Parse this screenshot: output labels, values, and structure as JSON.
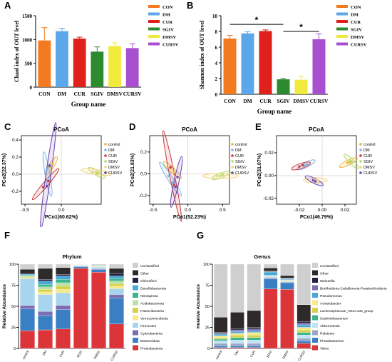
{
  "colors": {
    "CON": "#f47a20",
    "DM": "#5ba7ea",
    "CUR": "#e0201b",
    "SGIV": "#2e8a2e",
    "DMSV": "#f0ea3c",
    "CURSV": "#a84fcf",
    "pc_control": "#f2b43c",
    "pc_DM": "#7fb6e8",
    "pc_CUR": "#c8383c",
    "pc_SGIV": "#b2d96b",
    "pc_DMSV": "#f2d47c",
    "pc_CURSV": "#6b3fb0"
  },
  "panel_labels": [
    "A",
    "B",
    "C",
    "D",
    "E",
    "F",
    "G"
  ],
  "chart_data": [
    {
      "id": "A",
      "type": "bar",
      "title": "",
      "xlabel": "Group name",
      "ylabel": "Chaol index of OUT level",
      "categories": [
        "CON",
        "DM",
        "CUR",
        "SGIV",
        "DMSV",
        "CURSV"
      ],
      "values": [
        980,
        1175,
        1020,
        745,
        860,
        820
      ],
      "errors": [
        270,
        60,
        30,
        100,
        70,
        90
      ],
      "ylim": [
        0,
        1500
      ],
      "yticks": [
        "0",
        "500",
        "1000",
        "1500"
      ],
      "legend": [
        "CON",
        "DM",
        "CUR",
        "SGIV",
        "DMSV",
        "CURSV"
      ]
    },
    {
      "id": "B",
      "type": "bar",
      "title": "",
      "xlabel": "Group name",
      "ylabel": "Shannon index of OUT level",
      "categories": [
        "CON",
        "DM",
        "CUR",
        "SGIV",
        "DMSV",
        "CURSV"
      ],
      "values": [
        7.1,
        7.75,
        8.05,
        1.9,
        1.85,
        7.0
      ],
      "errors": [
        0.4,
        0.2,
        0.15,
        0.1,
        0.4,
        0.7
      ],
      "ylim": [
        0,
        10
      ],
      "yticks": [
        "0",
        "2",
        "4",
        "6",
        "8",
        "10"
      ],
      "significance": [
        "*",
        "*"
      ],
      "legend": [
        "CON",
        "DM",
        "CUR",
        "SGIV",
        "DMSV",
        "CURSV"
      ]
    },
    {
      "id": "C",
      "type": "scatter",
      "title": "PCoA",
      "xlabel": "PCo1(60.62%)",
      "ylabel": "PCo2(22.37%)",
      "xlim": [
        -0.55,
        0.55
      ],
      "ylim": [
        -0.35,
        0.45
      ],
      "xticks": [
        "-0.5",
        "0.0"
      ],
      "yticks": [
        "-0.2",
        "0.0",
        "0.2",
        "0.4"
      ],
      "legend": [
        "control",
        "DM",
        "CUR",
        "SGIV",
        "DMSV",
        "CURSV"
      ],
      "points": [
        {
          "g": "control",
          "x": -0.12,
          "y": 0.12
        },
        {
          "g": "control",
          "x": -0.15,
          "y": 0.08
        },
        {
          "g": "DM",
          "x": -0.2,
          "y": 0.05
        },
        {
          "g": "DM",
          "x": -0.18,
          "y": -0.05
        },
        {
          "g": "CUR",
          "x": -0.18,
          "y": -0.08
        },
        {
          "g": "CUR",
          "x": -0.25,
          "y": -0.15
        },
        {
          "g": "SGIV",
          "x": 0.48,
          "y": 0.02
        },
        {
          "g": "SGIV",
          "x": 0.5,
          "y": 0.01
        },
        {
          "g": "DMSV",
          "x": 0.44,
          "y": 0.03
        },
        {
          "g": "DMSV",
          "x": 0.52,
          "y": 0.02
        },
        {
          "g": "CURSV",
          "x": -0.2,
          "y": -0.14
        },
        {
          "g": "CURSV",
          "x": -0.16,
          "y": 0.1
        }
      ]
    },
    {
      "id": "D",
      "type": "scatter",
      "title": "PCoA",
      "xlabel": "PCo1(52.23%)",
      "ylabel": "PCo2(21.83%)",
      "xlim": [
        -0.55,
        0.6
      ],
      "ylim": [
        -0.28,
        0.35
      ],
      "xticks": [
        "-0.5",
        "0.0",
        "0.5"
      ],
      "yticks": [
        "-0.2",
        "0.0",
        "0.2"
      ],
      "legend": [
        "control",
        "DM",
        "CUR",
        "SGIV",
        "DMSV",
        "CURSV"
      ],
      "points": [
        {
          "g": "control",
          "x": -0.25,
          "y": 0.05
        },
        {
          "g": "control",
          "x": -0.2,
          "y": 0.02
        },
        {
          "g": "DM",
          "x": -0.28,
          "y": -0.02
        },
        {
          "g": "DM",
          "x": -0.22,
          "y": -0.08
        },
        {
          "g": "CUR",
          "x": -0.25,
          "y": 0.06
        },
        {
          "g": "CUR",
          "x": -0.2,
          "y": -0.1
        },
        {
          "g": "SGIV",
          "x": 0.46,
          "y": -0.02
        },
        {
          "g": "SGIV",
          "x": 0.5,
          "y": -0.01
        },
        {
          "g": "DMSV",
          "x": 0.42,
          "y": -0.02
        },
        {
          "g": "DMSV",
          "x": 0.52,
          "y": -0.02
        },
        {
          "g": "CURSV",
          "x": -0.18,
          "y": -0.12
        },
        {
          "g": "CURSV",
          "x": -0.15,
          "y": -0.03
        }
      ]
    },
    {
      "id": "E",
      "type": "scatter",
      "title": "PCoA",
      "xlabel": "PCo1(46.79%)",
      "ylabel": "PCo2(31.07%)",
      "xlim": [
        -0.04,
        0.03
      ],
      "ylim": [
        -0.025,
        0.035
      ],
      "xticks": [
        "-0.02",
        "0.00",
        "0.02"
      ],
      "yticks": [
        "-0.02",
        "0.00",
        "0.02"
      ],
      "legend": [
        "control",
        "DM",
        "CUR",
        "SGIV",
        "DMSV",
        "CURSV"
      ],
      "points": [
        {
          "g": "control",
          "x": 0.022,
          "y": 0.011
        },
        {
          "g": "control",
          "x": 0.024,
          "y": 0.012
        },
        {
          "g": "DM",
          "x": -0.015,
          "y": 0.009
        },
        {
          "g": "DM",
          "x": -0.013,
          "y": 0.01
        },
        {
          "g": "CUR",
          "x": -0.02,
          "y": 0.008
        },
        {
          "g": "CUR",
          "x": -0.017,
          "y": 0.009
        },
        {
          "g": "SGIV",
          "x": 0.026,
          "y": 0.012
        },
        {
          "g": "SGIV",
          "x": 0.025,
          "y": 0.013
        },
        {
          "g": "DMSV",
          "x": -0.008,
          "y": -0.004
        },
        {
          "g": "DMSV",
          "x": -0.004,
          "y": -0.004
        },
        {
          "g": "CURSV",
          "x": -0.008,
          "y": -0.004
        },
        {
          "g": "CURSV",
          "x": -0.006,
          "y": -0.005
        }
      ]
    },
    {
      "id": "F",
      "type": "bar",
      "stacked": true,
      "title": "Phylum",
      "xlabel": "",
      "ylabel": "Relative Abundance",
      "categories": [
        "control",
        "DM",
        "CUR",
        "SGIV",
        "DMSV",
        "CURSV"
      ],
      "ylim": [
        0,
        100
      ],
      "yticks": [
        "0",
        "25",
        "50",
        "75",
        "100"
      ],
      "series": [
        {
          "name": "Proteobacteria",
          "color": "#dc3539",
          "values": [
            21,
            22,
            23,
            95,
            90,
            29
          ]
        },
        {
          "name": "Bacteroidota",
          "color": "#3a7fc4",
          "values": [
            26,
            17,
            23,
            2,
            3,
            31
          ]
        },
        {
          "name": "Cyanobacteria",
          "color": "#7d6eb4",
          "values": [
            4,
            5,
            5,
            0.5,
            1,
            4
          ]
        },
        {
          "name": "Firmicutes",
          "color": "#a7d5ee",
          "values": [
            32,
            20,
            15,
            1,
            2,
            7
          ]
        },
        {
          "name": "Verrucomicrobiota",
          "color": "#f7e98a",
          "values": [
            1,
            3,
            4,
            0.5,
            0.5,
            3
          ]
        },
        {
          "name": "Patescibacteria",
          "color": "#d6d14a",
          "values": [
            1,
            3,
            4,
            0.2,
            0.5,
            3
          ]
        },
        {
          "name": "Acidobacteriota",
          "color": "#b8e0a8",
          "values": [
            1,
            3,
            4,
            0.2,
            0.5,
            3
          ]
        },
        {
          "name": "Nitrospirota",
          "color": "#3bb58c",
          "values": [
            1,
            3,
            4,
            0.1,
            0.5,
            3
          ]
        },
        {
          "name": "Desulfobacterota",
          "color": "#48a8d8",
          "values": [
            1,
            4,
            4,
            0.1,
            0.5,
            3
          ]
        },
        {
          "name": "Chloroflexi",
          "color": "#232040",
          "values": [
            1,
            2,
            2,
            0.1,
            0.3,
            3
          ]
        },
        {
          "name": "Other",
          "color": "#2e2a2a",
          "values": [
            5,
            13,
            8,
            0.2,
            0.5,
            6
          ]
        },
        {
          "name": "Unclassified",
          "color": "#cfcfcf",
          "values": [
            6,
            5,
            4,
            0.1,
            0.2,
            5
          ]
        }
      ]
    },
    {
      "id": "G",
      "type": "bar",
      "stacked": true,
      "title": "Genus",
      "xlabel": "",
      "ylabel": "Relative Abundance",
      "categories": [
        "control",
        "DM",
        "CUR",
        "SGIV",
        "DMSV",
        "CURSV"
      ],
      "ylim": [
        0,
        100
      ],
      "yticks": [
        "0",
        "25",
        "50",
        "75",
        "100"
      ],
      "series": [
        {
          "name": "Vibrio",
          "color": "#dc3539",
          "values": [
            1,
            1,
            1,
            72,
            70,
            6
          ]
        },
        {
          "name": "Photobacterium",
          "color": "#3a7fc4",
          "values": [
            2,
            2,
            2,
            12,
            8,
            3
          ]
        },
        {
          "name": "Ralstonia",
          "color": "#9aa8c8",
          "values": [
            3,
            3,
            3,
            2,
            1,
            3
          ]
        },
        {
          "name": "Akkermansia",
          "color": "#bfe3f5",
          "values": [
            3,
            4,
            4,
            1,
            1,
            4
          ]
        },
        {
          "name": "Sediminibacterium",
          "color": "#3bb58c",
          "values": [
            2,
            3,
            3,
            0.5,
            0.5,
            3
          ]
        },
        {
          "name": "Lachnospiraceae_NK4A136_group",
          "color": "#d6d14a",
          "values": [
            2,
            3,
            3,
            0.5,
            0.5,
            3
          ]
        },
        {
          "name": "Acinetobacter",
          "color": "#f7e98a",
          "values": [
            2,
            2,
            3,
            0.5,
            0.5,
            3
          ]
        },
        {
          "name": "Pseudomonas",
          "color": "#48a8d8",
          "values": [
            2,
            2,
            2,
            4,
            1,
            3
          ]
        },
        {
          "name": "Burkholderia-Caballeronia-Paraburkholderia",
          "color": "#7d6eb4",
          "values": [
            1,
            2,
            2,
            0.5,
            0.5,
            2
          ]
        },
        {
          "name": "Weissella",
          "color": "#232040",
          "values": [
            1,
            1,
            2,
            0.5,
            0.5,
            2
          ]
        },
        {
          "name": "Other",
          "color": "#2e2a2a",
          "values": [
            18,
            20,
            20,
            4,
            3,
            20
          ]
        },
        {
          "name": "Unclassified",
          "color": "#cfcfcf",
          "values": [
            63,
            57,
            55,
            4.5,
            13.5,
            48
          ]
        }
      ]
    }
  ]
}
